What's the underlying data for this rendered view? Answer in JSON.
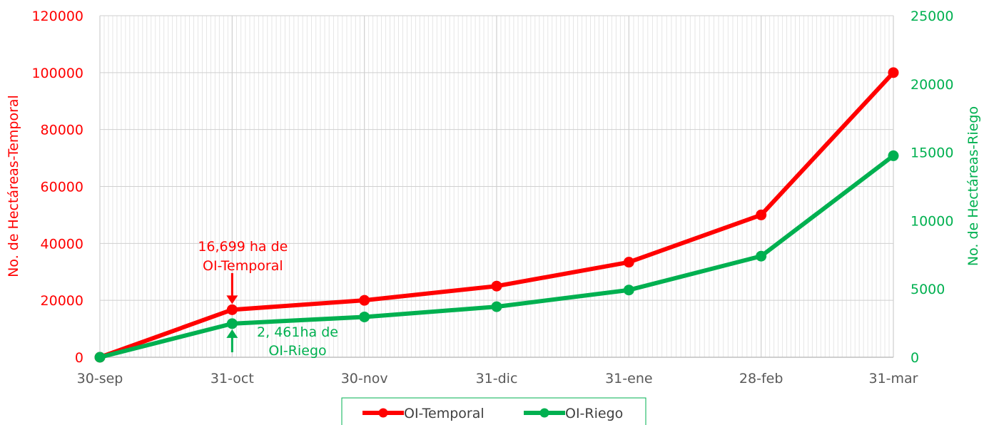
{
  "chart_data": {
    "type": "line",
    "categories": [
      "30-sep",
      "31-oct",
      "30-nov",
      "31-dic",
      "31-ene",
      "28-feb",
      "31-mar"
    ],
    "series": [
      {
        "name": "OI-Temporal",
        "axis": "left",
        "color": "#ff0000",
        "values": [
          0,
          16699,
          20000,
          25000,
          33400,
          50000,
          100000
        ]
      },
      {
        "name": "OI-Riego",
        "axis": "right",
        "color": "#00b050",
        "values": [
          0,
          2461,
          2950,
          3700,
          4920,
          7400,
          14750
        ]
      }
    ],
    "y_left": {
      "label": "No. de Hectáreas-Temporal",
      "range": [
        0,
        120000
      ],
      "ticks": [
        "0",
        "20000",
        "40000",
        "60000",
        "80000",
        "100000",
        "120000"
      ],
      "color": "#ff0000"
    },
    "y_right": {
      "label": "No. de Hectáreas-Riego",
      "range": [
        0,
        25000
      ],
      "ticks": [
        "0",
        "5000",
        "10000",
        "15000",
        "20000",
        "25000"
      ],
      "color": "#00b050"
    },
    "annotations": [
      {
        "series": "OI-Temporal",
        "category": "31-oct",
        "lines": [
          "16,699 ha de",
          "OI-Temporal"
        ]
      },
      {
        "series": "OI-Riego",
        "category": "31-oct",
        "lines": [
          "2, 461ha de",
          "OI-Riego"
        ]
      }
    ],
    "grid": true,
    "legend": {
      "placement": "bottom",
      "entries": [
        "OI-Temporal",
        "OI-Riego"
      ]
    }
  }
}
